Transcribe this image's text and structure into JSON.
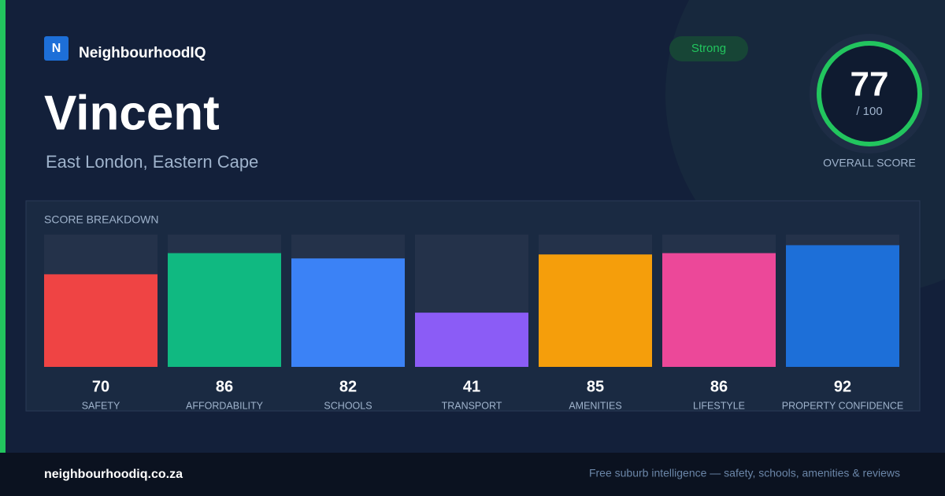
{
  "brand": {
    "logo_letter": "N",
    "name": "NeighbourhoodIQ"
  },
  "suburb": "Vincent",
  "location": "East London, Eastern Cape",
  "badge": "Strong",
  "overall": {
    "score": 77,
    "max_label": "/ 100",
    "label": "OVERALL SCORE"
  },
  "chart_data": {
    "type": "bar",
    "title": "SCORE BREAKDOWN",
    "categories": [
      "SAFETY",
      "AFFORDABILITY",
      "SCHOOLS",
      "TRANSPORT",
      "AMENITIES",
      "LIFESTYLE",
      "PROPERTY CONFIDENCE"
    ],
    "values": [
      70,
      86,
      82,
      41,
      85,
      86,
      92
    ],
    "colors": [
      "#ef4444",
      "#10b981",
      "#3b82f6",
      "#8b5cf6",
      "#f59e0b",
      "#ec4899",
      "#1d6fd8"
    ],
    "ylim": [
      0,
      100
    ]
  },
  "footer": {
    "site": "neighbourhoodiq.co.za",
    "tagline": "Free suburb intelligence — safety, schools, amenities & reviews"
  }
}
